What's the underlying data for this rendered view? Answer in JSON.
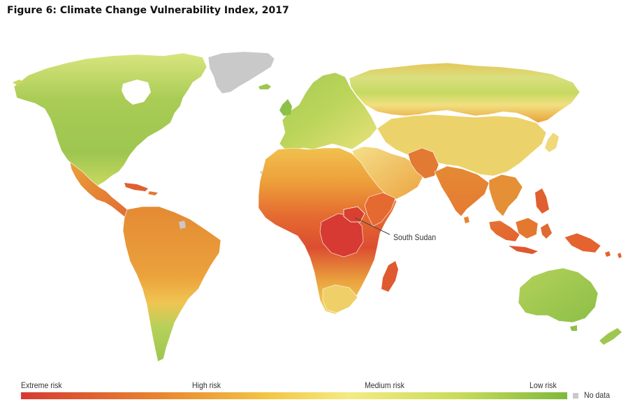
{
  "title": "Figure 6: Climate Change Vulnerability Index, 2017",
  "legend": {
    "labels": [
      "Extreme risk",
      "High risk",
      "Medium risk",
      "Low risk"
    ],
    "no_data_label": "No data",
    "scale_colors": [
      "#d63a33",
      "#e8842f",
      "#f3c543",
      "#f4eb82",
      "#c9dc5a",
      "#7fb83c"
    ],
    "no_data_color": "#c9c9c9"
  },
  "annotation": {
    "label": "South Sudan"
  },
  "colors": {
    "extreme": "#d63a33",
    "high": "#e8842f",
    "medium": "#f3d55e",
    "low": "#8dc048",
    "no_data": "#c9c9c9",
    "border": "#ffffff"
  }
}
